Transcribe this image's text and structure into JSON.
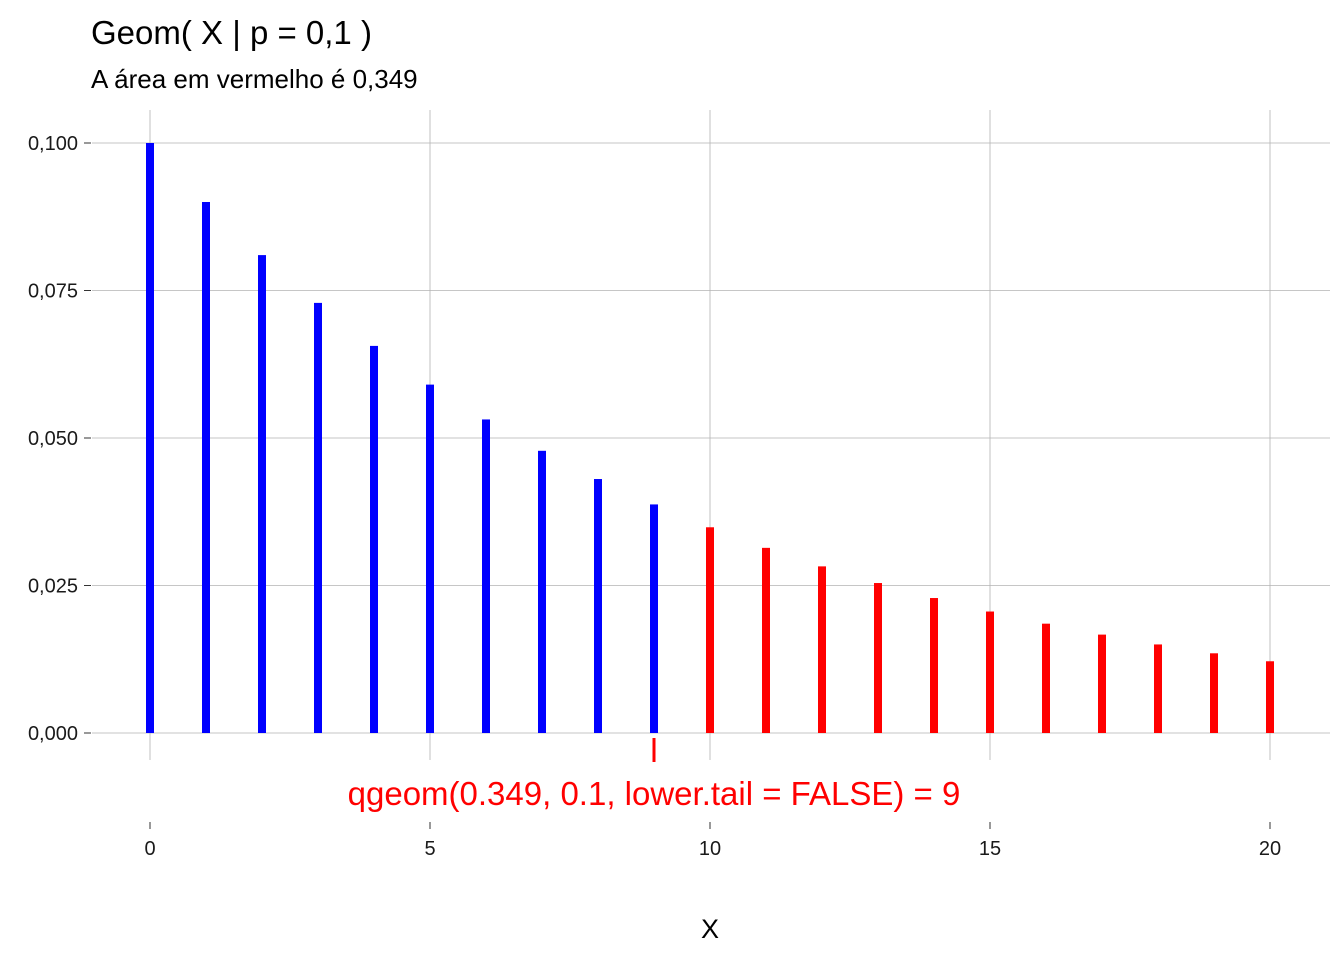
{
  "chart_data": {
    "type": "bar",
    "title": "Geom( X | p =  0,1 )",
    "subtitle": "A área em vermelho é 0,349",
    "xlabel": "X",
    "ylabel": "",
    "x": [
      0,
      1,
      2,
      3,
      4,
      5,
      6,
      7,
      8,
      9,
      10,
      11,
      12,
      13,
      14,
      15,
      16,
      17,
      18,
      19,
      20
    ],
    "values": [
      0.1,
      0.09,
      0.081,
      0.0729,
      0.06561,
      0.059049,
      0.0531441,
      0.04782969,
      0.043046721,
      0.0387420489,
      0.03486784401,
      0.031381059609,
      0.0282429536481,
      0.02541865828329,
      0.022876792454961,
      0.0205891132094649,
      0.01853020188851841,
      0.01667718169966657,
      0.015009463529699911,
      0.013508517176729922,
      0.01215766545905693
    ],
    "highlight_from_x": 10,
    "xlim": [
      0,
      20
    ],
    "ylim": [
      0,
      0.1
    ],
    "x_ticks": [
      0,
      5,
      10,
      15,
      20
    ],
    "x_tick_labels": [
      "0",
      "5",
      "10",
      "15",
      "20"
    ],
    "y_ticks": [
      0,
      0.025,
      0.05,
      0.075,
      0.1
    ],
    "y_tick_labels": [
      "0,000",
      "0,025",
      "0,050",
      "0,075",
      "0,100"
    ],
    "grid": true,
    "colors": {
      "base": "#0000ff",
      "highlight": "#ff0000",
      "annotation": "#ff0000"
    },
    "annotation": {
      "text": "qgeom(0.349, 0.1, lower.tail = FALSE) = 9",
      "marker_x": 9
    }
  }
}
